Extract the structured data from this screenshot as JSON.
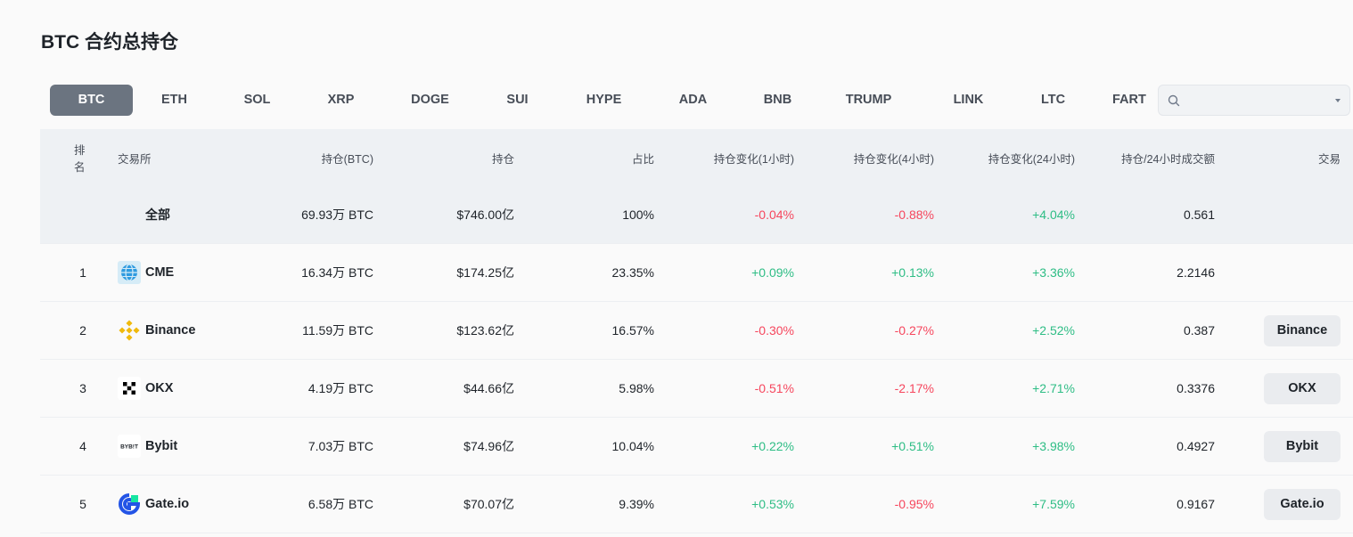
{
  "page": {
    "title": "BTC 合约总持仓"
  },
  "coin_tabs": [
    {
      "label": "BTC",
      "active": true
    },
    {
      "label": "ETH"
    },
    {
      "label": "SOL"
    },
    {
      "label": "XRP"
    },
    {
      "label": "DOGE"
    },
    {
      "label": "SUI"
    },
    {
      "label": "HYPE"
    },
    {
      "label": "ADA"
    },
    {
      "label": "BNB"
    },
    {
      "label": "TRUMP"
    },
    {
      "label": "LINK"
    },
    {
      "label": "LTC"
    },
    {
      "label": "FART"
    }
  ],
  "search": {
    "value": "",
    "placeholder": ""
  },
  "table": {
    "headers": {
      "rank": "排名",
      "exchange": "交易所",
      "oi_btc": "持仓(BTC)",
      "oi": "持仓",
      "share": "占比",
      "change_1h": "持仓变化(1小时)",
      "change_4h": "持仓变化(4小时)",
      "change_24h": "持仓变化(24小时)",
      "oi_volume_ratio": "持仓/24小时成交额",
      "trade": "交易"
    },
    "total": {
      "label": "全部",
      "oi_btc": "69.93万 BTC",
      "oi": "$746.00亿",
      "share": "100%",
      "change_1h": "-0.04%",
      "change_4h": "-0.88%",
      "change_24h": "+4.04%",
      "oi_volume_ratio": "0.561"
    },
    "rows": [
      {
        "rank": "1",
        "exchange": "CME",
        "logo": "cme-globe-icon",
        "oi_btc": "16.34万 BTC",
        "oi": "$174.25亿",
        "share": "23.35%",
        "change_1h": "+0.09%",
        "change_4h": "+0.13%",
        "change_24h": "+3.36%",
        "oi_volume_ratio": "2.2146",
        "trade": ""
      },
      {
        "rank": "2",
        "exchange": "Binance",
        "logo": "binance-logo-icon",
        "oi_btc": "11.59万 BTC",
        "oi": "$123.62亿",
        "share": "16.57%",
        "change_1h": "-0.30%",
        "change_4h": "-0.27%",
        "change_24h": "+2.52%",
        "oi_volume_ratio": "0.387",
        "trade": "Binance"
      },
      {
        "rank": "3",
        "exchange": "OKX",
        "logo": "okx-logo-icon",
        "oi_btc": "4.19万 BTC",
        "oi": "$44.66亿",
        "share": "5.98%",
        "change_1h": "-0.51%",
        "change_4h": "-2.17%",
        "change_24h": "+2.71%",
        "oi_volume_ratio": "0.3376",
        "trade": "OKX"
      },
      {
        "rank": "4",
        "exchange": "Bybit",
        "logo": "bybit-logo-icon",
        "logo_text": "BYB!T",
        "oi_btc": "7.03万 BTC",
        "oi": "$74.96亿",
        "share": "10.04%",
        "change_1h": "+0.22%",
        "change_4h": "+0.51%",
        "change_24h": "+3.98%",
        "oi_volume_ratio": "0.4927",
        "trade": "Bybit"
      },
      {
        "rank": "5",
        "exchange": "Gate.io",
        "logo": "gateio-logo-icon",
        "oi_btc": "6.58万 BTC",
        "oi": "$70.07亿",
        "share": "9.39%",
        "change_1h": "+0.53%",
        "change_4h": "-0.95%",
        "change_24h": "+7.59%",
        "oi_volume_ratio": "0.9167",
        "trade": "Gate.io"
      }
    ]
  },
  "colors": {
    "positive": "#2ebd85",
    "negative": "#f6465d",
    "active_tab": "#6b7480",
    "binance_yellow": "#f0b90b",
    "gate_blue": "#2354e6"
  }
}
